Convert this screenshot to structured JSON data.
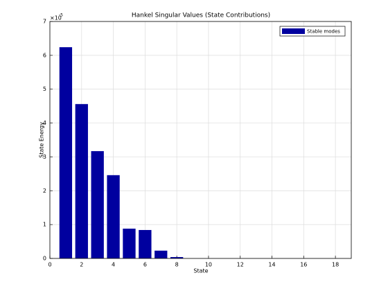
{
  "chart_data": {
    "type": "bar",
    "title": "Hankel Singular Values (State Contributions)",
    "x_label": "State",
    "y_label": "State Energy",
    "y_multiplier": {
      "base": "×10",
      "power": "-5"
    },
    "x": [
      1,
      2,
      3,
      4,
      5,
      6,
      7,
      8,
      9,
      10,
      11,
      12,
      13,
      14,
      15,
      16,
      17,
      18
    ],
    "series": [
      {
        "name": "Stable modes",
        "color": "#00009f",
        "values": [
          6.24,
          4.56,
          3.17,
          2.46,
          0.88,
          0.84,
          0.23,
          0.04,
          0,
          0,
          0,
          0,
          0,
          0,
          0,
          0,
          0,
          0
        ]
      }
    ],
    "xlim": [
      0,
      19
    ],
    "xticks": [
      0,
      2,
      4,
      6,
      8,
      10,
      12,
      14,
      16,
      18
    ],
    "ylim": [
      0,
      7
    ],
    "yticks": [
      0,
      1,
      2,
      3,
      4,
      5,
      6,
      7
    ],
    "grid": true,
    "legend_position": "northeast"
  }
}
